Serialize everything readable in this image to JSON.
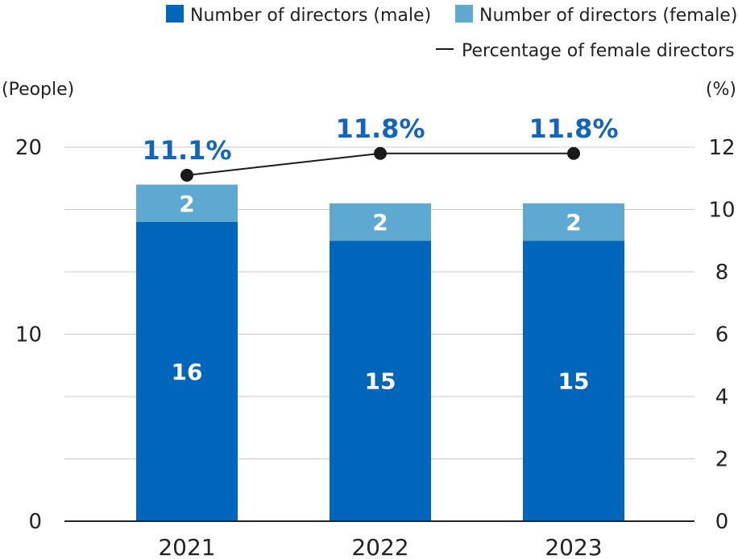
{
  "colors": {
    "male": "#0066bb",
    "female": "#5ea9d1",
    "line": "#1a1a1a",
    "pct_text": "#1166bb",
    "grid": "#c8c8c8"
  },
  "legend": {
    "male": "Number of directors (male)",
    "female": "Number of directors (female)",
    "line": "Percentage of female directors"
  },
  "chart_data": {
    "type": "bar",
    "stacked": true,
    "categories": [
      "2021",
      "2022",
      "2023"
    ],
    "series": [
      {
        "name": "Number of directors (male)",
        "values": [
          16,
          15,
          15
        ],
        "labels": [
          "16",
          "15",
          "15"
        ]
      },
      {
        "name": "Number of directors (female)",
        "values": [
          2,
          2,
          2
        ],
        "labels": [
          "2",
          "2",
          "2"
        ]
      }
    ],
    "line_series": {
      "name": "Percentage of female directors",
      "values": [
        11.1,
        11.8,
        11.8
      ],
      "labels": [
        "11.1%",
        "11.8%",
        "11.8%"
      ]
    },
    "y_left": {
      "unit": "(People)",
      "min": 0,
      "max": 20,
      "ticks": [
        0,
        10,
        20
      ],
      "tick_labels": [
        "0",
        "10",
        "20"
      ]
    },
    "y_right": {
      "unit": "(%)",
      "min": 0,
      "max": 12,
      "ticks": [
        0,
        2,
        4,
        6,
        8,
        10,
        12
      ],
      "tick_labels": [
        "0",
        "2",
        "4",
        "6",
        "8",
        "10",
        "12"
      ]
    },
    "grid": true,
    "legend_position": "top-right"
  }
}
